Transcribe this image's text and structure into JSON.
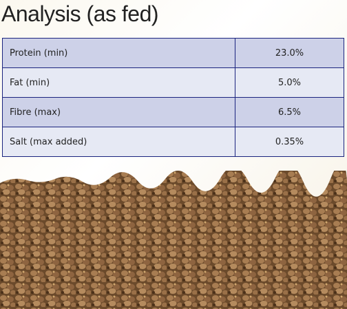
{
  "header": {
    "title": "Analysis (as fed)"
  },
  "table": {
    "rows": [
      [
        "Protein (min)",
        "23.0%"
      ],
      [
        "Fat (min)",
        "5.0%"
      ],
      [
        "Fibre (max)",
        "6.5%"
      ],
      [
        "Salt (max added)",
        "0.35%"
      ]
    ]
  }
}
